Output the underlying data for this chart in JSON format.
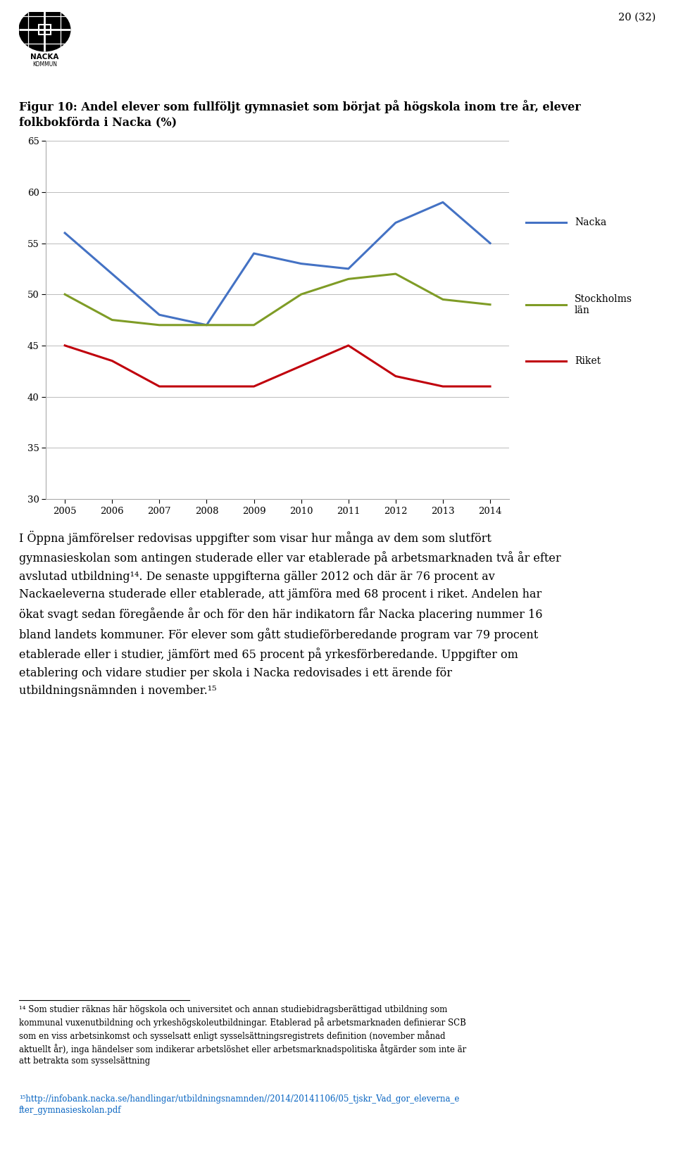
{
  "years": [
    2005,
    2006,
    2007,
    2008,
    2009,
    2010,
    2011,
    2012,
    2013,
    2014
  ],
  "nacka": [
    56,
    52,
    48,
    47,
    54,
    53,
    52.5,
    57,
    59,
    55
  ],
  "riket": [
    45,
    43.5,
    41,
    41,
    41,
    43,
    45,
    42,
    41,
    41
  ],
  "stockholms_lan": [
    50,
    47.5,
    47,
    47,
    47,
    50,
    51.5,
    52,
    49.5,
    49
  ],
  "nacka_color": "#4472C4",
  "riket_color": "#C0000C",
  "stockholm_color": "#7F9C26",
  "ylim": [
    30,
    65
  ],
  "yticks": [
    30,
    35,
    40,
    45,
    50,
    55,
    60,
    65
  ],
  "page_number": "20 (32)",
  "legend_nacka": "Nacka",
  "legend_riket": "Riket",
  "legend_stockholm": "Stockholms\nlän",
  "line_width": 2.2
}
